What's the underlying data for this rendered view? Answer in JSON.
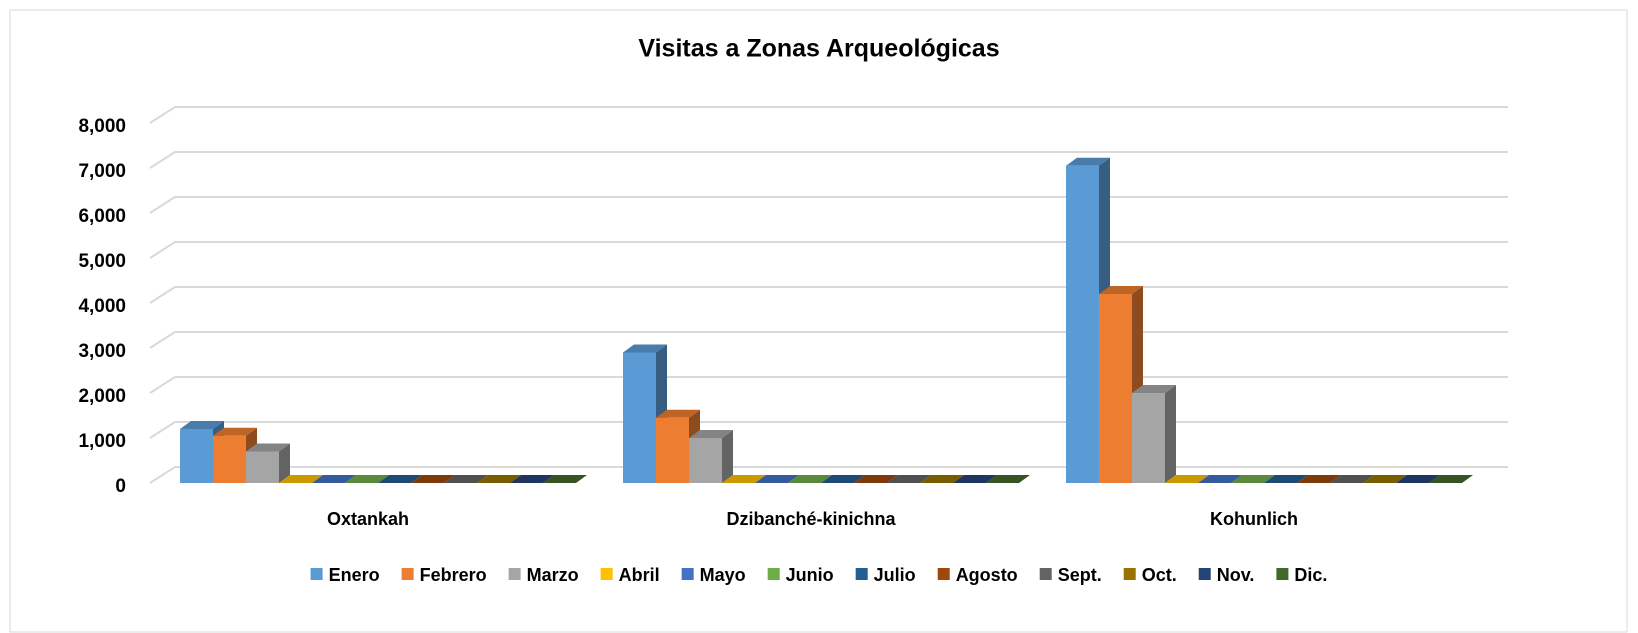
{
  "chart_data": {
    "type": "bar3d",
    "title": "Visitas  a Zonas Arqueológicas",
    "categories": [
      "Oxtankah",
      "Dzibanché-kinichna",
      "Kohunlich"
    ],
    "series": [
      {
        "name": "Enero",
        "color": "#5b9bd5",
        "values": [
          1200,
          2900,
          7050
        ]
      },
      {
        "name": "Febrero",
        "color": "#ed7d31",
        "values": [
          1050,
          1450,
          4200
        ]
      },
      {
        "name": "Marzo",
        "color": "#a5a5a5",
        "values": [
          700,
          1000,
          2000
        ]
      },
      {
        "name": "Abril",
        "color": "#ffc000",
        "values": [
          0,
          0,
          0
        ]
      },
      {
        "name": "Mayo",
        "color": "#4472c4",
        "values": [
          0,
          0,
          0
        ]
      },
      {
        "name": "Junio",
        "color": "#70ad47",
        "values": [
          0,
          0,
          0
        ]
      },
      {
        "name": "Julio",
        "color": "#255e91",
        "values": [
          0,
          0,
          0
        ]
      },
      {
        "name": "Agosto",
        "color": "#9e480e",
        "values": [
          0,
          0,
          0
        ]
      },
      {
        "name": "Sept.",
        "color": "#636363",
        "values": [
          0,
          0,
          0
        ]
      },
      {
        "name": "Oct.",
        "color": "#997300",
        "values": [
          0,
          0,
          0
        ]
      },
      {
        "name": "Nov.",
        "color": "#264478",
        "values": [
          0,
          0,
          0
        ]
      },
      {
        "name": "Dic.",
        "color": "#43682b",
        "values": [
          0,
          0,
          0
        ]
      }
    ],
    "ylim": [
      0,
      8000
    ],
    "yticks": [
      0,
      {
        "value": 1000,
        "label": "1,000"
      },
      {
        "value": 2000,
        "label": "2,000"
      },
      {
        "value": 3000,
        "label": "3,000"
      },
      {
        "value": 4000,
        "label": "4,000"
      },
      {
        "value": 5000,
        "label": "5,000"
      },
      {
        "value": 6000,
        "label": "6,000"
      },
      {
        "value": 7000,
        "label": "7,000"
      },
      {
        "value": 8000,
        "label": "8,000"
      }
    ],
    "grid": true,
    "legend": "bottom"
  }
}
